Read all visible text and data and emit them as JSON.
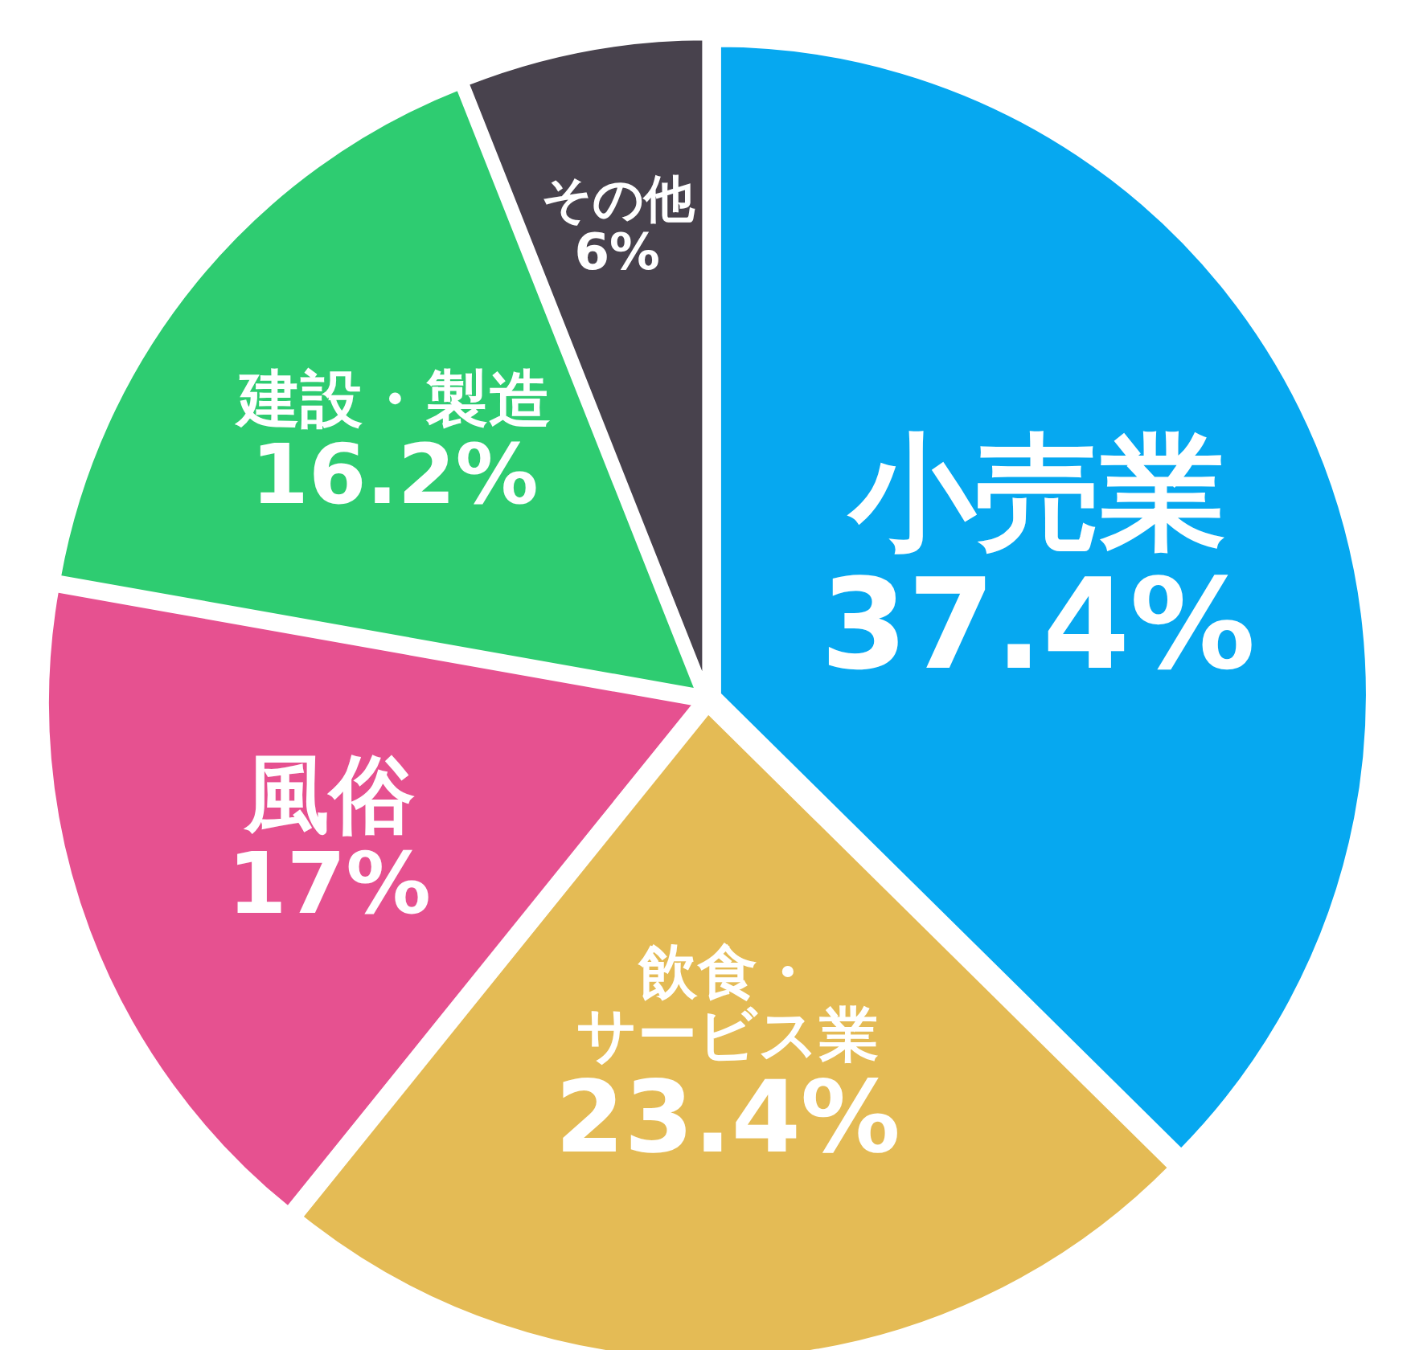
{
  "chart_data": {
    "type": "pie",
    "categories": [
      "小売業",
      "飲食・サービス業",
      "風俗",
      "建設・製造",
      "その他"
    ],
    "values": [
      37.4,
      23.4,
      17,
      16.2,
      6
    ],
    "value_labels": [
      "37.4%",
      "23.4%",
      "17%",
      "16.2%",
      "6%"
    ],
    "colors": [
      "#06a8f0",
      "#e4bb55",
      "#e65190",
      "#2ecc71",
      "#48424d"
    ]
  }
}
